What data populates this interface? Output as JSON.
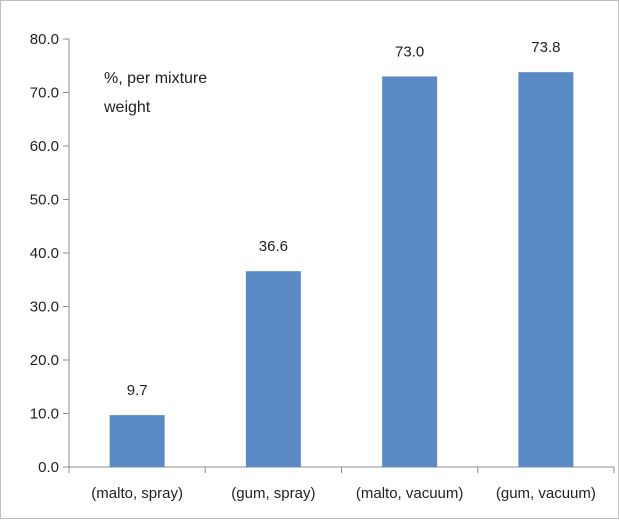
{
  "chart_data": {
    "type": "bar",
    "categories": [
      "(malto, spray)",
      "(gum, spray)",
      "(malto, vacuum)",
      "(gum, vacuum)"
    ],
    "values": [
      9.7,
      36.6,
      73.0,
      73.8
    ],
    "data_labels": [
      "9.7",
      "36.6",
      "73.0",
      "73.8"
    ],
    "annotation_lines": [
      "%, per mixture",
      "weight"
    ],
    "ylim": [
      0,
      80
    ],
    "yticks": [
      "0.0",
      "10.0",
      "20.0",
      "30.0",
      "40.0",
      "50.0",
      "60.0",
      "70.0",
      "80.0"
    ],
    "grid": false,
    "bar_color": "#5b8bc6"
  }
}
